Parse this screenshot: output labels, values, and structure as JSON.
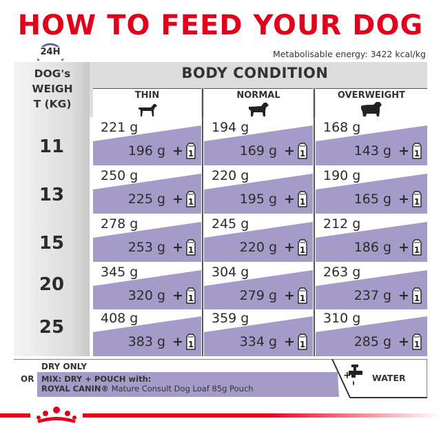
{
  "title": "HOW TO FEED YOUR DOG",
  "clock_label": "24H",
  "energy_text": "Metabolisable energy: 3422 kcal/kg",
  "weight_header": [
    "DOG's",
    "WEIGH",
    "T (KG)"
  ],
  "body_condition_title": "BODY CONDITION",
  "columns": [
    {
      "label": "THIN",
      "icon": "thin-dog-icon"
    },
    {
      "label": "NORMAL",
      "icon": "normal-dog-icon"
    },
    {
      "label": "OVERWEIGHT",
      "icon": "overweight-dog-icon"
    }
  ],
  "rows": [
    {
      "weight": "11",
      "cells": [
        {
          "dry": "221 g",
          "mix": "196 g"
        },
        {
          "dry": "194 g",
          "mix": "169 g"
        },
        {
          "dry": "168 g",
          "mix": "143 g"
        }
      ]
    },
    {
      "weight": "13",
      "cells": [
        {
          "dry": "250 g",
          "mix": "225 g"
        },
        {
          "dry": "220 g",
          "mix": "195 g"
        },
        {
          "dry": "190 g",
          "mix": "165 g"
        }
      ]
    },
    {
      "weight": "15",
      "cells": [
        {
          "dry": "278 g",
          "mix": "253 g"
        },
        {
          "dry": "245 g",
          "mix": "220 g"
        },
        {
          "dry": "212 g",
          "mix": "186 g"
        }
      ]
    },
    {
      "weight": "20",
      "cells": [
        {
          "dry": "345 g",
          "mix": "320 g"
        },
        {
          "dry": "304 g",
          "mix": "279 g"
        },
        {
          "dry": "263 g",
          "mix": "237 g"
        }
      ]
    },
    {
      "weight": "25",
      "cells": [
        {
          "dry": "408 g",
          "mix": "383 g"
        },
        {
          "dry": "359 g",
          "mix": "334 g"
        },
        {
          "dry": "310 g",
          "mix": "285 g"
        }
      ]
    }
  ],
  "plus_sign": "+",
  "pouch_count": "1",
  "legend": {
    "dry_only": "DRY ONLY",
    "or": "OR",
    "mix_line1": "MIX: DRY + POUCH with:",
    "mix_line2_brand": "ROYAL CANIN®",
    "mix_line2_product": " Mature Consult Dog Loaf 85g Pouch",
    "water": "WATER"
  },
  "colors": {
    "brand_red": "#e2001a",
    "mix_purple": "#a59bc9",
    "header_gray": "#dcdcdc",
    "clock_purple": "#6a5aa8"
  }
}
